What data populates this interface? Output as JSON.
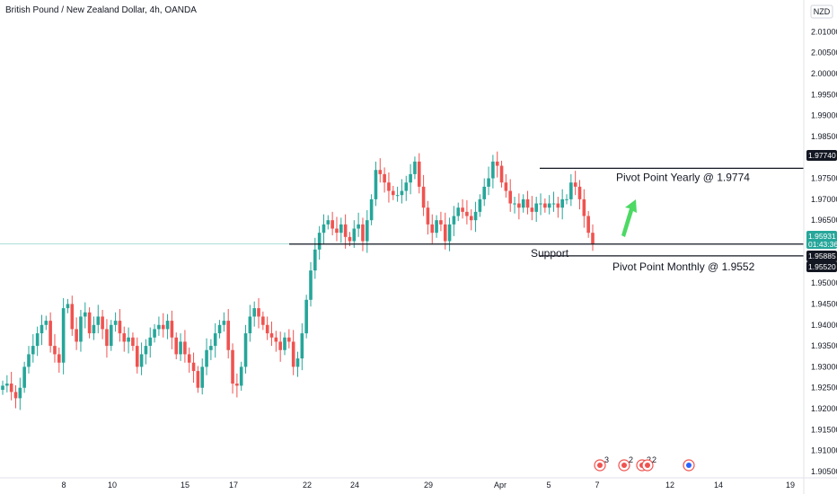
{
  "header": {
    "title": "British Pound / New Zealand Dollar, 4h, OANDA"
  },
  "currency_label": "NZD",
  "colors": {
    "up": "#26a69a",
    "down": "#ef5350",
    "line": "#131722",
    "arrow": "#4cd964",
    "price_badge": "#26a69a",
    "label_badge": "#131722"
  },
  "chart_data": {
    "type": "candlestick",
    "y_axis": {
      "min": 1.905,
      "max": 2.015,
      "ticks": [
        "2.01000",
        "2.00500",
        "2.00000",
        "1.99500",
        "1.99000",
        "1.98500",
        "1.98000",
        "1.97500",
        "1.97000",
        "1.96500",
        "1.95500",
        "1.95000",
        "1.94500",
        "1.94000",
        "1.93500",
        "1.93000",
        "1.92500",
        "1.92000",
        "1.91500",
        "1.91000",
        "1.90500"
      ]
    },
    "x_axis": {
      "ticks": [
        "8",
        "10",
        "15",
        "17",
        "22",
        "24",
        "29",
        "Apr",
        "5",
        "7",
        "12",
        "14",
        "19"
      ]
    },
    "price_badges": [
      {
        "value": "1.97740",
        "kind": "level"
      },
      {
        "value": "1.95931",
        "sub": "01:43:36",
        "kind": "current"
      },
      {
        "value": "1.95885",
        "kind": "level"
      },
      {
        "value": "1.95520",
        "kind": "level"
      }
    ],
    "levels": [
      {
        "value": 1.9774,
        "label": "Pivot Point Yearly @ 1.9774"
      },
      {
        "value": 1.9593,
        "label": "Support"
      },
      {
        "value": 1.9552,
        "label": "Pivot Point Monthly @ 1.9552"
      }
    ],
    "event_badges": [
      "3",
      "2",
      "2",
      "2",
      ""
    ],
    "closes": [
      1.9255,
      1.926,
      1.924,
      1.9225,
      1.925,
      1.93,
      1.933,
      1.935,
      1.938,
      1.94,
      1.941,
      1.935,
      1.933,
      1.931,
      1.944,
      1.945,
      1.939,
      1.936,
      1.942,
      1.943,
      1.938,
      1.94,
      1.942,
      1.939,
      1.935,
      1.94,
      1.941,
      1.938,
      1.936,
      1.937,
      1.935,
      1.93,
      1.933,
      1.935,
      1.937,
      1.939,
      1.94,
      1.939,
      1.941,
      1.937,
      1.933,
      1.936,
      1.933,
      1.931,
      1.929,
      1.925,
      1.93,
      1.934,
      1.935,
      1.938,
      1.94,
      1.941,
      1.934,
      1.926,
      1.9255,
      1.93,
      1.938,
      1.942,
      1.944,
      1.942,
      1.94,
      1.938,
      1.937,
      1.936,
      1.934,
      1.937,
      1.936,
      1.93,
      1.932,
      1.938,
      1.946,
      1.953,
      1.958,
      1.962,
      1.964,
      1.965,
      1.963,
      1.962,
      1.964,
      1.961,
      1.96,
      1.963,
      1.964,
      1.96,
      1.965,
      1.97,
      1.977,
      1.976,
      1.974,
      1.972,
      1.971,
      1.971,
      1.972,
      1.974,
      1.976,
      1.979,
      1.973,
      1.968,
      1.964,
      1.962,
      1.965,
      1.964,
      1.96,
      1.964,
      1.966,
      1.968,
      1.967,
      1.966,
      1.965,
      1.967,
      1.97,
      1.973,
      1.975,
      1.979,
      1.978,
      1.974,
      1.972,
      1.969,
      1.969,
      1.968,
      1.97,
      1.968,
      1.967,
      1.969,
      1.969,
      1.968,
      1.969,
      1.969,
      1.968,
      1.97,
      1.97,
      1.974,
      1.973,
      1.97,
      1.966,
      1.962,
      1.9593
    ]
  }
}
